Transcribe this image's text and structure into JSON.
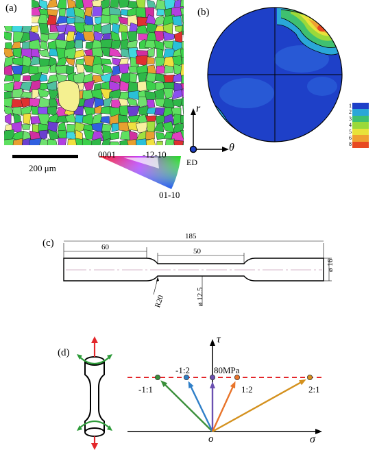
{
  "panel_a": {
    "label": "(a)",
    "scale_bar": "200 μm",
    "ipf_key": {
      "top_left": "0001",
      "top_right": "-12-10",
      "bottom": "01-10"
    }
  },
  "panel_b": {
    "label": "(b)",
    "axis_r": "r",
    "axis_theta": "θ",
    "origin_label": "ED",
    "legend_values": [
      "1",
      "2",
      "3",
      "4",
      "5",
      "6",
      "8"
    ],
    "legend_colors": [
      "#1e40c8",
      "#2aa7d8",
      "#3fc070",
      "#9bd93a",
      "#e8e23a",
      "#f0a032",
      "#e84a22"
    ]
  },
  "panel_c": {
    "label": "(c)",
    "dims": {
      "total": "185",
      "grip": "60",
      "gauge": "50",
      "dia_grip": "ø 16",
      "dia_gauge": "ø 12.5",
      "radius": "R20"
    }
  },
  "panel_d": {
    "label": "(d)",
    "axis_tau": "τ",
    "axis_sigma": "σ",
    "origin": "o",
    "stress_level": "80MPa",
    "ratios": [
      "-1:1",
      "-1:2",
      "1:2",
      "2:1"
    ],
    "colors": {
      "dashed": "#e3262a",
      "neg11": "#3a8f3a",
      "neg12": "#2f7fc8",
      "zero": "#6a4fb0",
      "pos12": "#e8742a",
      "pos21": "#d4911e"
    }
  }
}
